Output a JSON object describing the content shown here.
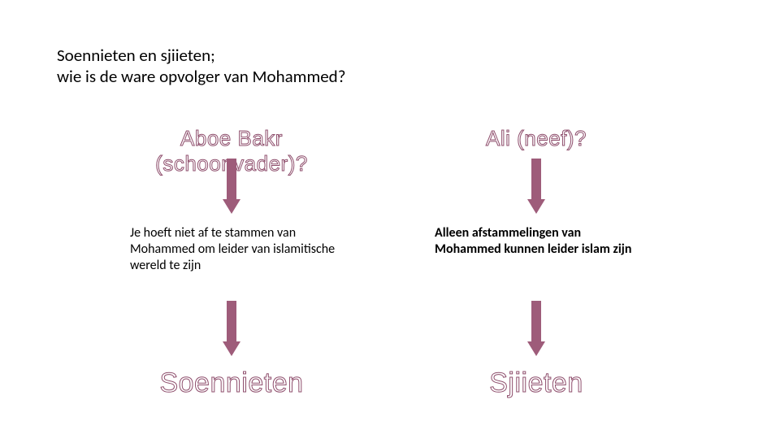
{
  "title_line1": "Soennieten en sjiieten;",
  "title_line2": "wie is de ware opvolger van Mohammed?",
  "arrow_color": "#9e5c7a",
  "outline_color": "#8f4f6d",
  "background_color": "#ffffff",
  "text_color": "#000000",
  "left": {
    "heading": "Aboe Bakr (schoonvader)?",
    "description": "Je hoeft niet af te stammen van Mohammed om leider van islamitische wereld te zijn",
    "result": "Soennieten"
  },
  "right": {
    "heading": "Ali (neef)?",
    "description": "Alleen afstammelingen van Mohammed kunnen leider islam zijn",
    "result": "Sjiieten"
  },
  "arrow": {
    "width": 22,
    "height": 68,
    "shaft_width": 12,
    "head_width": 22,
    "head_height": 18
  },
  "heading_top_fontsize": 26,
  "heading_bot_fontsize": 34,
  "desc_fontsize": 16,
  "title_fontsize": 21
}
